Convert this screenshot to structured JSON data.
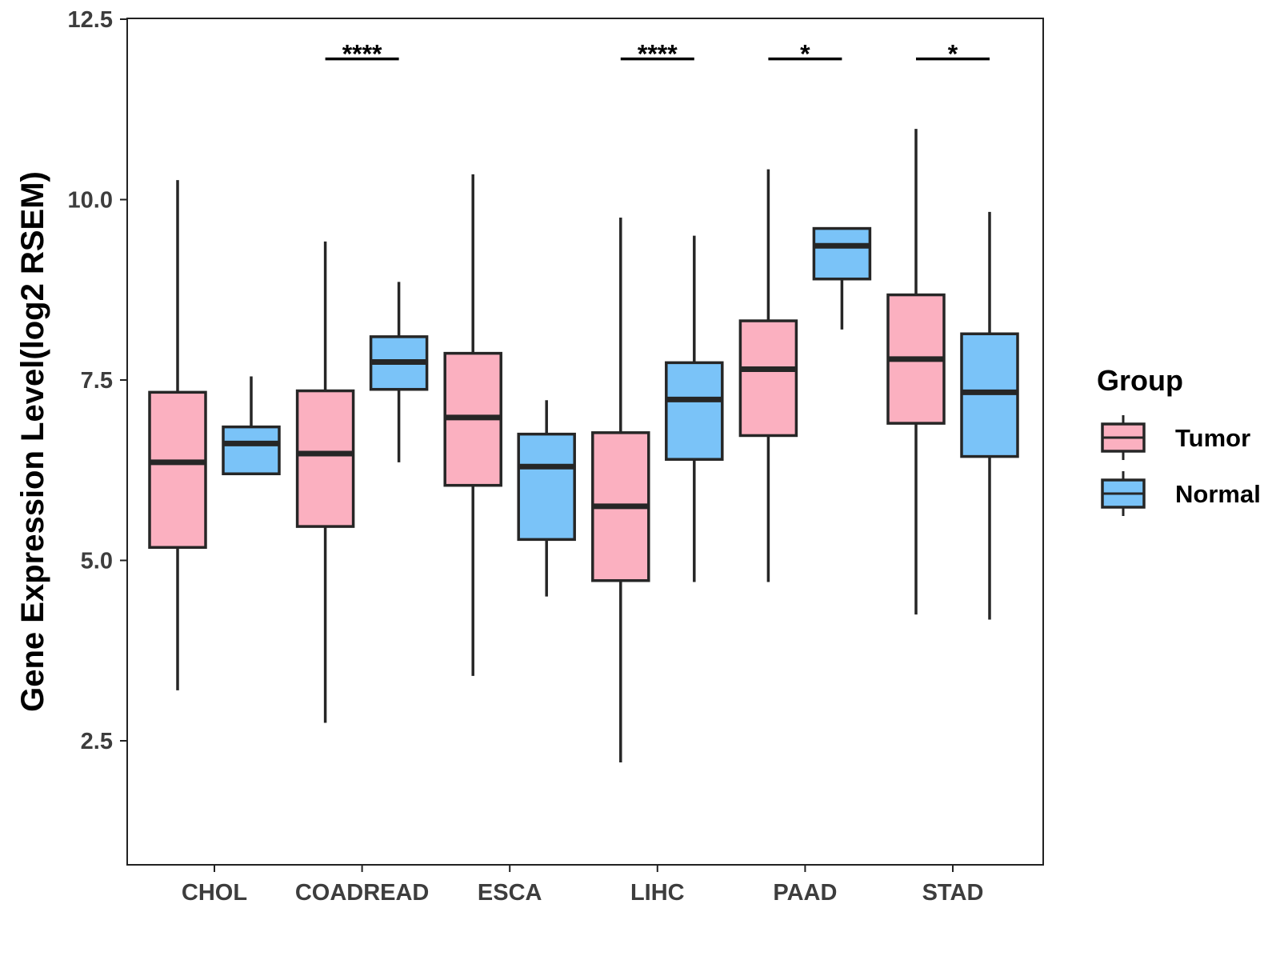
{
  "chart_data": {
    "type": "boxplot",
    "title": "",
    "xlabel": "",
    "ylabel": "Gene Expression Level(log2 RSEM)",
    "ylim": [
      1.1,
      12.5
    ],
    "yticks": [
      2.5,
      5.0,
      7.5,
      10.0,
      12.5
    ],
    "ytick_labels": [
      "2.5",
      "5.0",
      "7.5",
      "10.0",
      "12.5"
    ],
    "categories": [
      "CHOL",
      "COADREAD",
      "ESCA",
      "LIHC",
      "PAAD",
      "STAD"
    ],
    "grid": false,
    "legend": {
      "title": "Group",
      "position": "right",
      "entries": [
        {
          "label": "Tumor",
          "color": "#fbb0c0"
        },
        {
          "label": "Normal",
          "color": "#7ac3f8"
        }
      ]
    },
    "series": [
      {
        "name": "Tumor",
        "color": "#fbb0c0",
        "boxes": [
          {
            "category": "CHOL",
            "min": 3.2,
            "q1": 5.18,
            "median": 6.36,
            "q3": 7.33,
            "max": 10.27
          },
          {
            "category": "COADREAD",
            "min": 2.75,
            "q1": 5.47,
            "median": 6.48,
            "q3": 7.35,
            "max": 9.42
          },
          {
            "category": "ESCA",
            "min": 3.4,
            "q1": 6.04,
            "median": 6.98,
            "q3": 7.87,
            "max": 10.35
          },
          {
            "category": "LIHC",
            "min": 2.2,
            "q1": 4.72,
            "median": 5.75,
            "q3": 6.77,
            "max": 9.75
          },
          {
            "category": "PAAD",
            "min": 4.7,
            "q1": 6.73,
            "median": 7.65,
            "q3": 8.32,
            "max": 10.42
          },
          {
            "category": "STAD",
            "min": 4.25,
            "q1": 6.9,
            "median": 7.79,
            "q3": 8.68,
            "max": 10.98
          }
        ]
      },
      {
        "name": "Normal",
        "color": "#7ac3f8",
        "boxes": [
          {
            "category": "CHOL",
            "min": 6.2,
            "q1": 6.2,
            "median": 6.62,
            "q3": 6.85,
            "max": 7.55
          },
          {
            "category": "COADREAD",
            "min": 6.36,
            "q1": 7.37,
            "median": 7.75,
            "q3": 8.1,
            "max": 8.86
          },
          {
            "category": "ESCA",
            "min": 4.5,
            "q1": 5.29,
            "median": 6.3,
            "q3": 6.75,
            "max": 7.22
          },
          {
            "category": "LIHC",
            "min": 4.7,
            "q1": 6.4,
            "median": 7.23,
            "q3": 7.74,
            "max": 9.5
          },
          {
            "category": "PAAD",
            "min": 8.2,
            "q1": 8.9,
            "median": 9.36,
            "q3": 9.6,
            "max": 9.6
          },
          {
            "category": "STAD",
            "min": 4.18,
            "q1": 6.44,
            "median": 7.33,
            "q3": 8.14,
            "max": 9.83
          }
        ]
      }
    ],
    "significance": [
      {
        "category": "COADREAD",
        "label": "****",
        "y": 11.95
      },
      {
        "category": "LIHC",
        "label": "****",
        "y": 11.95
      },
      {
        "category": "PAAD",
        "label": "*",
        "y": 11.95
      },
      {
        "category": "STAD",
        "label": "*",
        "y": 11.95
      }
    ]
  }
}
